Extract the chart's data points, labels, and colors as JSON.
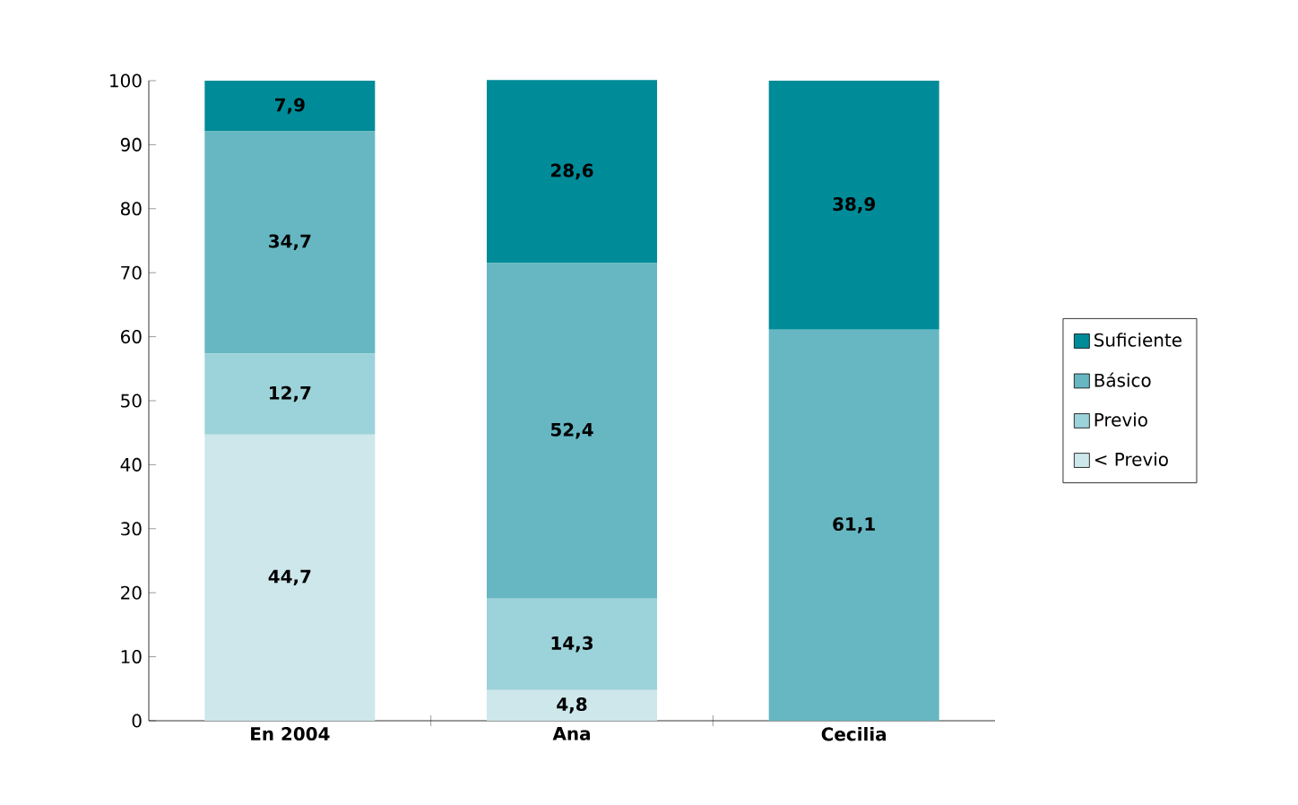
{
  "chart_data": {
    "type": "bar",
    "stacked": true,
    "categories": [
      "En 2004",
      "Ana",
      "Cecilia"
    ],
    "series": [
      {
        "name": "< Previo",
        "color": "#cde7eb",
        "values": [
          44.7,
          4.8,
          0
        ],
        "value_labels": [
          "44,7",
          "4,8",
          null
        ]
      },
      {
        "name": "Previo",
        "color": "#9cd2d9",
        "values": [
          12.7,
          14.3,
          0
        ],
        "value_labels": [
          "12,7",
          "14,3",
          null
        ]
      },
      {
        "name": "Básico",
        "color": "#66b7c2",
        "values": [
          34.7,
          52.4,
          61.1
        ],
        "value_labels": [
          "34,7",
          "52,4",
          "61,1"
        ]
      },
      {
        "name": "Suficiente",
        "color": "#008b98",
        "values": [
          7.9,
          28.6,
          38.9
        ],
        "value_labels": [
          "7,9",
          "28,6",
          "38,9"
        ]
      }
    ],
    "ylim": [
      0,
      100
    ],
    "yticks": [
      0,
      10,
      20,
      30,
      40,
      50,
      60,
      70,
      80,
      90,
      100
    ],
    "legend": "right",
    "grid": false
  }
}
